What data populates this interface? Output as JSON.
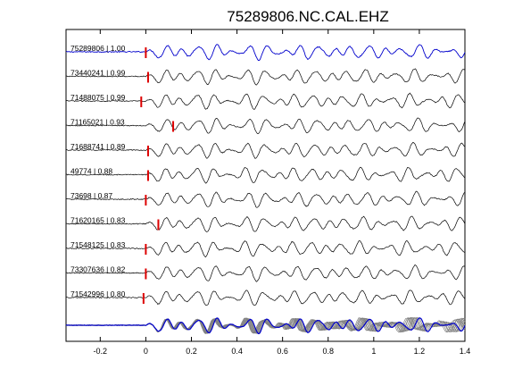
{
  "chart_data": {
    "type": "line",
    "title": "75289806.NC.CAL.EHZ",
    "xlabel": "",
    "ylabel": "",
    "xlim": [
      -0.35,
      1.4
    ],
    "xticks": [
      -0.2,
      0,
      0.2,
      0.4,
      0.6,
      0.8,
      1,
      1.2,
      1.4
    ],
    "xtick_labels": [
      "-0.2",
      "0",
      "0.2",
      "0.4",
      "0.6",
      "0.8",
      "1",
      "1.2",
      "1.4"
    ],
    "grid": false,
    "legend": "none",
    "colors": {
      "reference": "#0000cc",
      "trace": "#000000",
      "stack": "#808080",
      "pick": "#dd0000"
    },
    "traces": [
      {
        "label": "75289806 | 1.00",
        "pick_time": 0.0,
        "reference": true
      },
      {
        "label": "73440241 | 0.99",
        "pick_time": 0.01
      },
      {
        "label": "71488075 | 0.99",
        "pick_time": -0.02
      },
      {
        "label": "71165021 | 0.93",
        "pick_time": 0.12
      },
      {
        "label": "71688741 | 0.89",
        "pick_time": 0.01
      },
      {
        "label": "49774 | 0.88",
        "pick_time": 0.01
      },
      {
        "label": "73698 | 0.87",
        "pick_time": 0.0
      },
      {
        "label": "71620165 | 0.83",
        "pick_time": 0.055
      },
      {
        "label": "71548125 | 0.83",
        "pick_time": 0.0
      },
      {
        "label": "73307636 | 0.82",
        "pick_time": 0.0
      },
      {
        "label": "71542996 | 0.80",
        "pick_time": -0.01
      }
    ],
    "stack": {
      "reference_color": "#0000cc",
      "members_color": "#808080"
    }
  }
}
